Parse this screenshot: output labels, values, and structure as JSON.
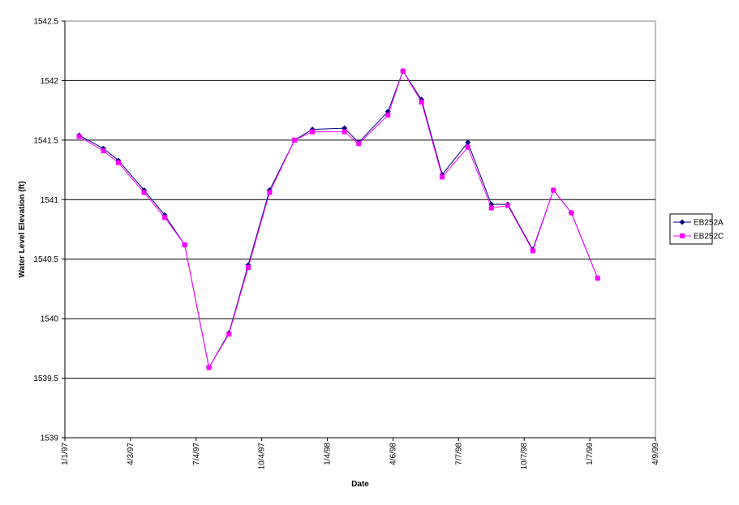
{
  "chart_data": {
    "type": "line",
    "x_label": "Date",
    "y_label": "Water Level Elevation (ft)",
    "x": [
      "1/21/97",
      "2/24/97",
      "3/17/97",
      "4/22/97",
      "5/21/97",
      "6/18/97",
      "7/22/97",
      "8/19/97",
      "9/15/97",
      "10/15/97",
      "11/19/97",
      "12/14/97",
      "1/28/98",
      "2/17/98",
      "3/30/98",
      "4/20/98",
      "5/16/98",
      "6/14/98",
      "7/20/98",
      "8/22/98",
      "9/14/98",
      "10/19/98",
      "11/17/98",
      "12/12/98",
      "1/18/99"
    ],
    "series": [
      {
        "name": "EB252A",
        "color": "#000080",
        "marker": "diamond",
        "values": [
          1541.54,
          1541.43,
          1541.33,
          1541.08,
          1540.87,
          1540.62,
          1539.59,
          1539.88,
          1540.45,
          1541.08,
          1541.5,
          1541.59,
          1541.6,
          1541.48,
          1541.74,
          1542.08,
          1541.84,
          1541.21,
          1541.48,
          1540.96,
          1540.96,
          1540.58,
          1541.08,
          1540.89,
          1540.34
        ]
      },
      {
        "name": "EB252C",
        "color": "#ff00ff",
        "marker": "square",
        "values": [
          1541.53,
          1541.41,
          1541.31,
          1541.06,
          1540.85,
          1540.62,
          1539.59,
          1539.87,
          1540.43,
          1541.06,
          1541.5,
          1541.57,
          1541.57,
          1541.47,
          1541.71,
          1542.08,
          1541.82,
          1541.19,
          1541.44,
          1540.93,
          1540.95,
          1540.57,
          1541.08,
          1540.89,
          1540.34
        ]
      }
    ],
    "xlim": [
      "1/1/97",
      "4/9/99"
    ],
    "xticks": [
      "1/1/97",
      "4/3/97",
      "7/4/97",
      "10/4/97",
      "1/4/98",
      "4/6/98",
      "7/7/98",
      "10/7/98",
      "1/7/99",
      "4/9/99"
    ],
    "ylim": [
      1539,
      1542.5
    ],
    "yticks": [
      1539,
      1539.5,
      1540,
      1540.5,
      1541,
      1541.5,
      1542,
      1542.5
    ],
    "grid": true,
    "legend": "right"
  }
}
